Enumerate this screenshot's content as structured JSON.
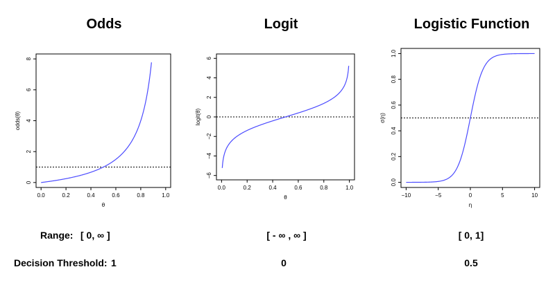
{
  "titles": [
    "Odds",
    "Logit",
    "Logistic Function"
  ],
  "rows": {
    "range_label": "Range:",
    "range_values": [
      "[ 0, ∞ ]",
      "[ - ∞ , ∞ ]",
      "[ 0, 1]"
    ],
    "threshold_label": "Decision Threshold:",
    "threshold_values": [
      "1",
      "0",
      "0.5"
    ]
  },
  "colors": {
    "curve": "#4b4bff",
    "reference_line": "#000000",
    "axes": "#000000"
  },
  "chart_data": [
    {
      "type": "line",
      "title": "Odds",
      "xlabel": "θ",
      "ylabel": "odds(θ)",
      "function": "x/(1-x)",
      "xlim": [
        0,
        1
      ],
      "ylim": [
        0,
        8
      ],
      "xticks": [
        0.0,
        0.2,
        0.4,
        0.6,
        0.8,
        1.0
      ],
      "xtick_labels": [
        "0.0",
        "0.2",
        "0.4",
        "0.6",
        "0.8",
        "1.0"
      ],
      "yticks": [
        0,
        2,
        4,
        6,
        8
      ],
      "ytick_labels": [
        "0",
        "2",
        "4",
        "6",
        "8"
      ],
      "x": [
        0.0,
        0.1,
        0.2,
        0.3,
        0.4,
        0.5,
        0.6,
        0.7,
        0.8,
        0.85,
        0.889
      ],
      "y": [
        0.0,
        0.111,
        0.25,
        0.429,
        0.667,
        1.0,
        1.5,
        2.333,
        4.0,
        5.667,
        8.0
      ],
      "hline": 1,
      "grid": false
    },
    {
      "type": "line",
      "title": "Logit",
      "xlabel": "θ",
      "ylabel": "logit(θ)",
      "function": "log(x/(1-x))",
      "xlim": [
        0,
        1
      ],
      "ylim": [
        -6.2,
        6.2
      ],
      "xticks": [
        0.0,
        0.2,
        0.4,
        0.6,
        0.8,
        1.0
      ],
      "xtick_labels": [
        "0.0",
        "0.2",
        "0.4",
        "0.6",
        "0.8",
        "1.0"
      ],
      "yticks": [
        -6,
        -4,
        -2,
        0,
        2,
        4,
        6
      ],
      "ytick_labels": [
        "−6",
        "−4",
        "−2",
        "0",
        "2",
        "4",
        "6"
      ],
      "x": [
        0.002,
        0.01,
        0.05,
        0.1,
        0.2,
        0.3,
        0.4,
        0.5,
        0.6,
        0.7,
        0.8,
        0.9,
        0.95,
        0.99,
        0.998
      ],
      "y": [
        -6.21,
        -4.6,
        -2.94,
        -2.2,
        -1.39,
        -0.85,
        -0.41,
        0.0,
        0.41,
        0.85,
        1.39,
        2.2,
        2.94,
        4.6,
        6.21
      ],
      "hline": 0,
      "grid": false
    },
    {
      "type": "line",
      "title": "Logistic Function",
      "xlabel": "η",
      "ylabel": "σ(η)",
      "function": "1/(1+exp(-x))",
      "xlim": [
        -10,
        10
      ],
      "ylim": [
        0,
        1
      ],
      "xticks": [
        -10,
        -5,
        0,
        5,
        10
      ],
      "xtick_labels": [
        "−10",
        "−5",
        "0",
        "5",
        "10"
      ],
      "yticks": [
        0.0,
        0.2,
        0.4,
        0.6,
        0.8,
        1.0
      ],
      "ytick_labels": [
        "0.0",
        "0.2",
        "0.4",
        "0.6",
        "0.8",
        "1.0"
      ],
      "x": [
        -10,
        -6,
        -4,
        -3,
        -2,
        -1,
        0,
        1,
        2,
        3,
        4,
        6,
        10
      ],
      "y": [
        0.0,
        0.002,
        0.018,
        0.047,
        0.119,
        0.269,
        0.5,
        0.731,
        0.881,
        0.953,
        0.982,
        0.998,
        1.0
      ],
      "hline": 0.5,
      "grid": false
    }
  ]
}
